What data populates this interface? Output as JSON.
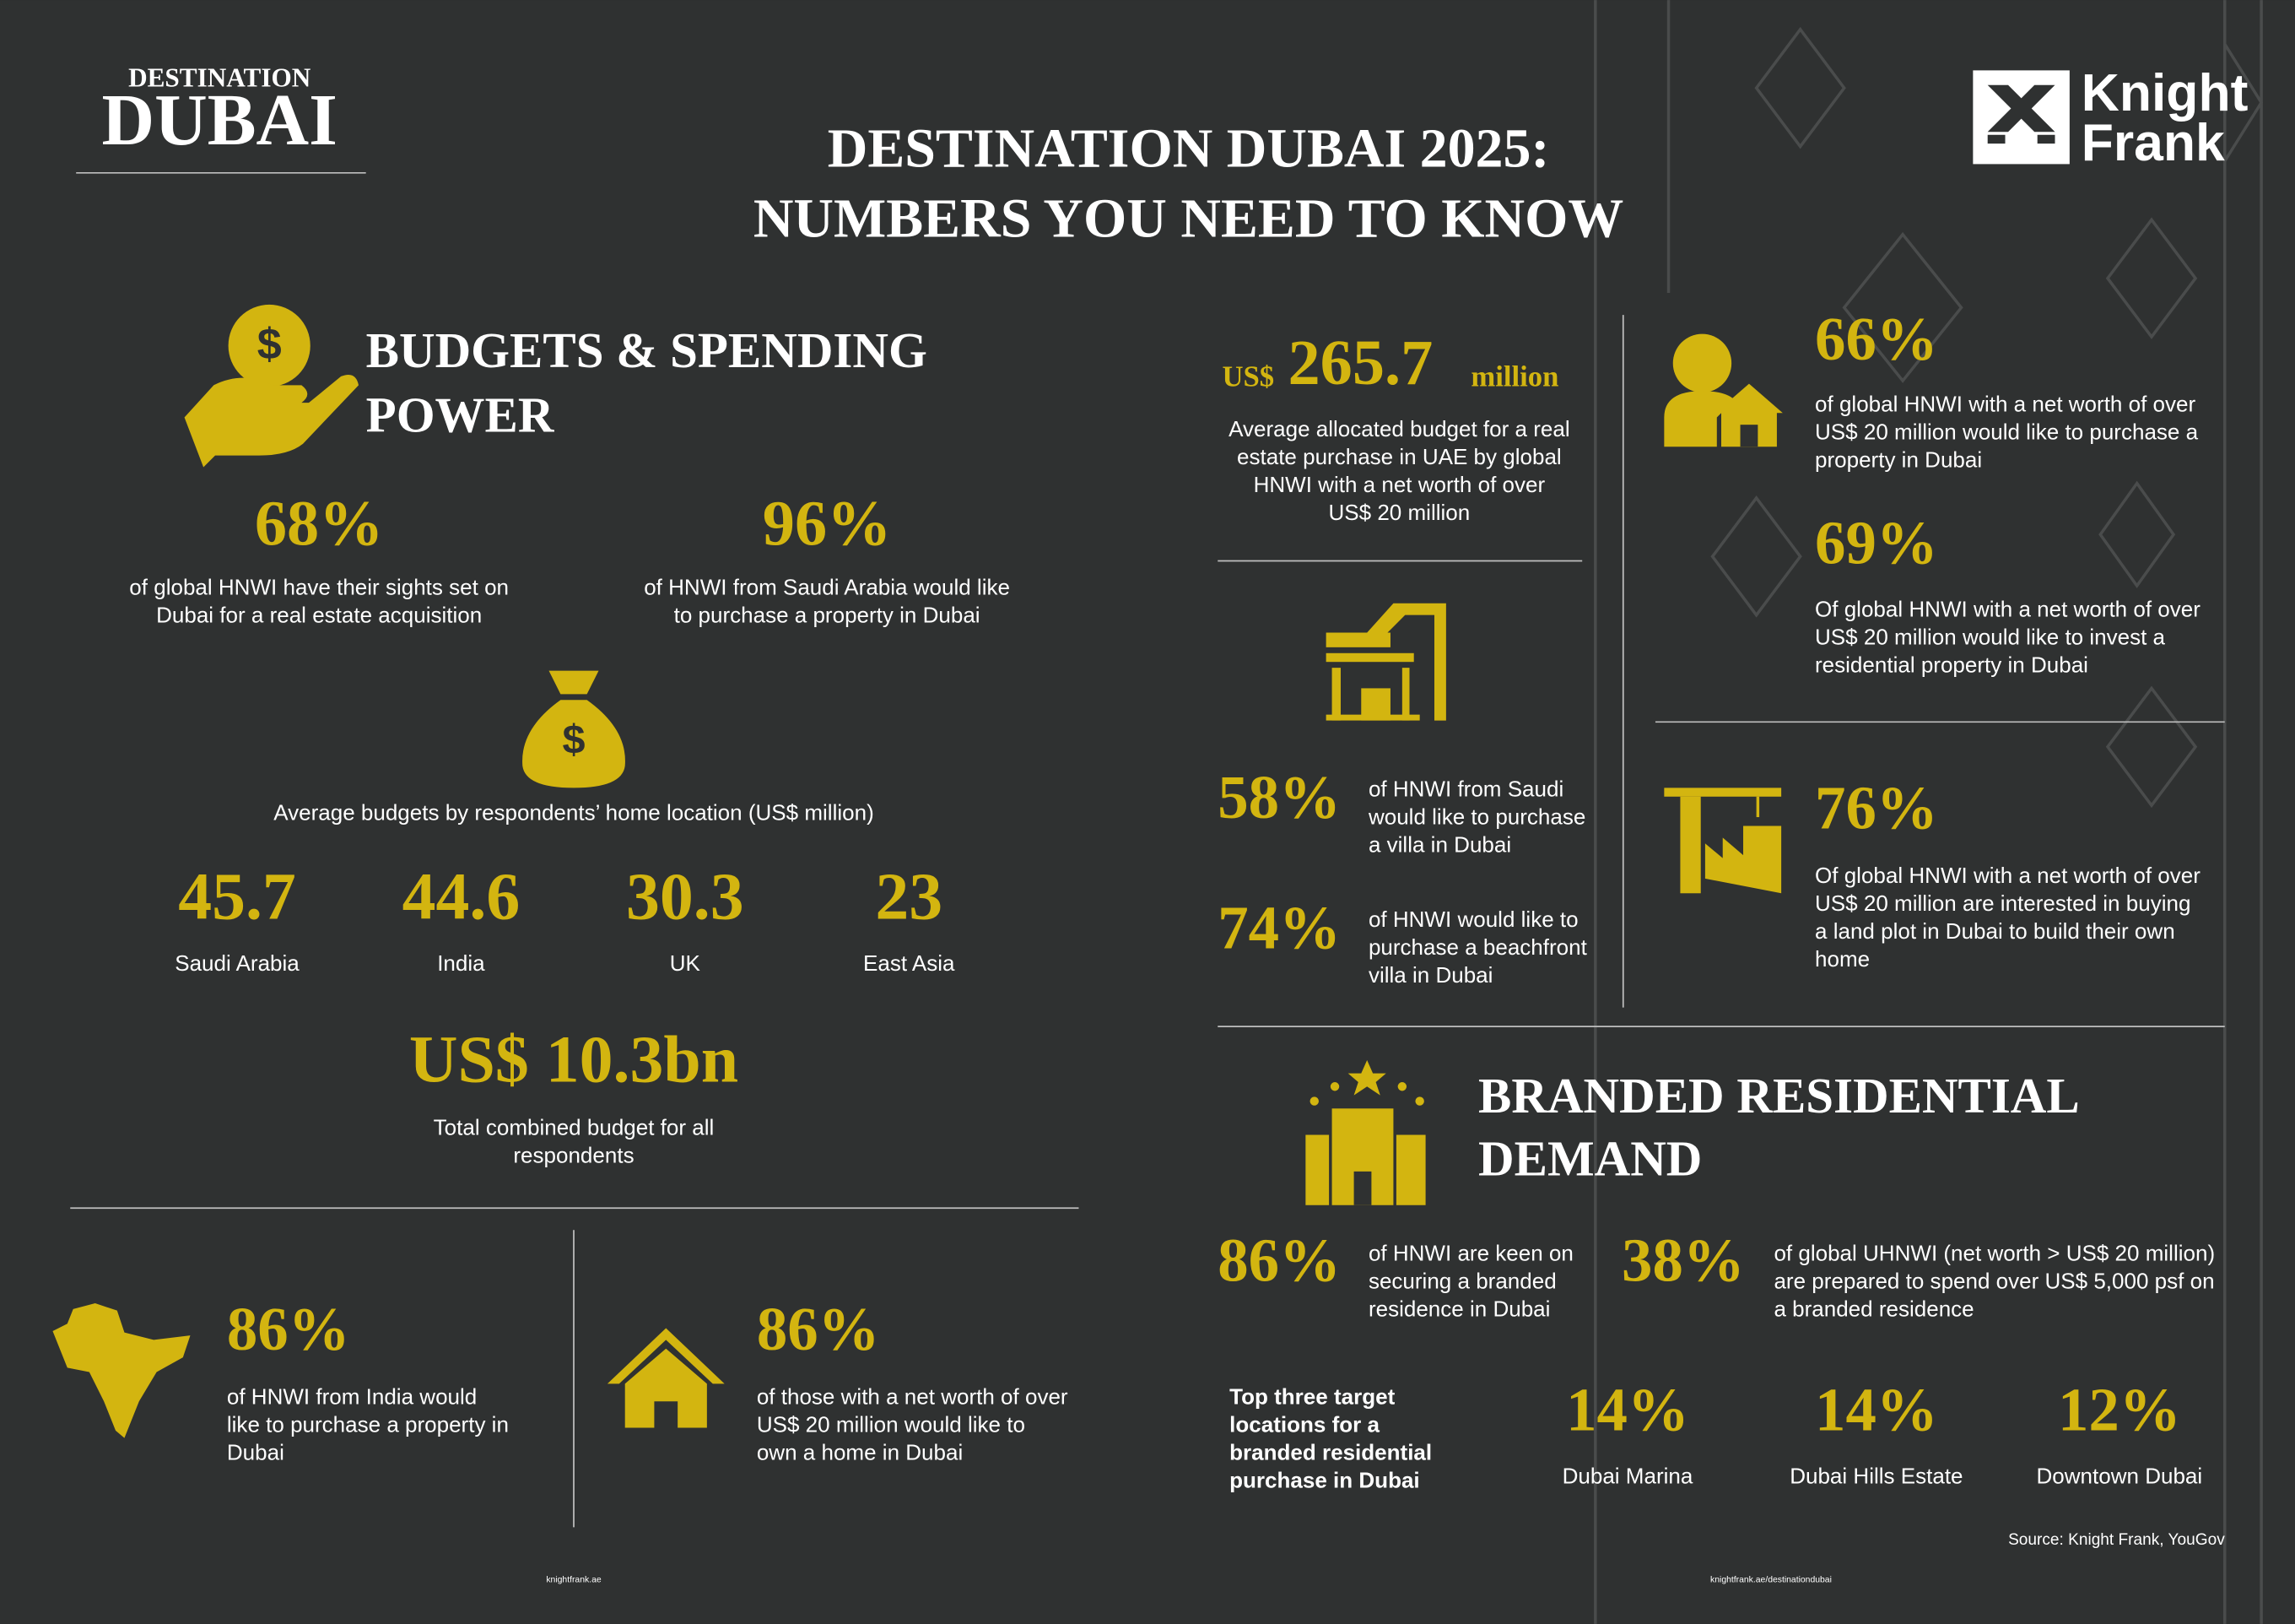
{
  "brand": {
    "series": "DESTINATION",
    "name": "DUBAI",
    "company_line1": "Knight",
    "company_line2": "Frank"
  },
  "header": {
    "title_line1": "DESTINATION DUBAI 2025:",
    "title_line2": "NUMBERS YOU NEED TO KNOW"
  },
  "budgets": {
    "heading_lines": [
      "BUDGETS & SPENDING",
      "POWER"
    ],
    "stats": [
      {
        "value": "68%",
        "lines": [
          "of global HNWI have their sights set on",
          "Dubai for a real estate acquisition"
        ]
      },
      {
        "value": "96%",
        "lines": [
          "of HNWI from Saudi Arabia would like",
          "to purchase a property in Dubai"
        ]
      }
    ],
    "by_location": {
      "caption": "Average budgets by respondents’ home location (US$ million)",
      "items": [
        {
          "value": "45.7",
          "label": "Saudi Arabia"
        },
        {
          "value": "44.6",
          "label": "India"
        },
        {
          "value": "30.3",
          "label": "UK"
        },
        {
          "value": "23",
          "label": "East Asia"
        }
      ]
    },
    "total": {
      "value": "US$ 10.3bn",
      "lines": [
        "Total combined budget for all",
        "respondents"
      ]
    }
  },
  "ownership": [
    {
      "value": "86%",
      "lines": [
        "of HNWI from India would",
        "like to purchase a property in",
        "Dubai"
      ]
    },
    {
      "value": "86%",
      "lines": [
        "of those with a net worth of over",
        "US$ 20 million would like to",
        "own a home in Dubai"
      ]
    }
  ],
  "allocated": {
    "prefix": "US$",
    "value": "265.7",
    "suffix": "million",
    "lines": [
      "Average allocated budget for a real",
      "estate purchase in UAE by global",
      "HNWI with a net worth of over",
      "US$ 20 million"
    ]
  },
  "villa": [
    {
      "value": "58%",
      "lines": [
        "of HNWI from Saudi",
        "would like to purchase",
        "a villa in Dubai"
      ]
    },
    {
      "value": "74%",
      "lines": [
        "of HNWI would like to",
        "purchase a beachfront",
        "villa in Dubai"
      ]
    }
  ],
  "intent": [
    {
      "value": "66%",
      "lines": [
        "of global HNWI with a net worth of over",
        "US$ 20 million would like to purchase a",
        "property in Dubai"
      ]
    },
    {
      "value": "69%",
      "lines": [
        "Of global HNWI with a net worth of over",
        "US$ 20 million would like to invest a",
        "residential property in Dubai"
      ]
    },
    {
      "value": "76%",
      "lines": [
        "Of global HNWI with a net worth of over",
        "US$ 20 million are interested in buying",
        "a land plot in Dubai to build their own",
        "home"
      ]
    }
  ],
  "branded": {
    "heading_lines": [
      "BRANDED RESIDENTIAL",
      "DEMAND"
    ],
    "stats": [
      {
        "value": "86%",
        "lines": [
          "of HNWI are keen on",
          "securing a branded",
          "residence in Dubai"
        ]
      },
      {
        "value": "38%",
        "lines": [
          "of global UHNWI (net worth > US$ 20 million)",
          "are prepared to spend over US$ 5,000 psf on",
          "a branded residence"
        ]
      }
    ],
    "top_three": {
      "label_lines": [
        "Top three target",
        "locations for a",
        "branded residential",
        "purchase in Dubai"
      ],
      "items": [
        {
          "value": "14%",
          "label": "Dubai Marina"
        },
        {
          "value": "14%",
          "label": "Dubai Hills Estate"
        },
        {
          "value": "12%",
          "label": "Downtown Dubai"
        }
      ]
    }
  },
  "footer": {
    "source": "Source: Knight Frank, YouGov",
    "url_left": "knightfrank.ae",
    "url_right": "knightfrank.ae/destinationdubai"
  }
}
